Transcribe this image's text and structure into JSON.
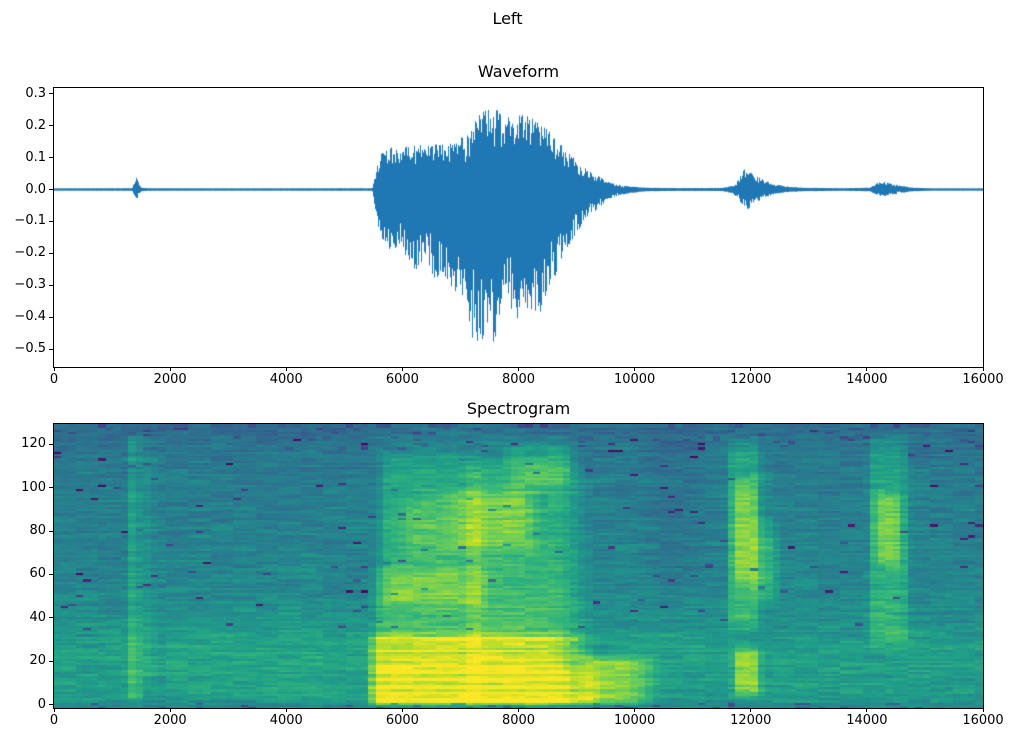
{
  "figure": {
    "suptitle": "Left",
    "background": "#ffffff",
    "text_color": "#000000"
  },
  "chart_data": [
    {
      "type": "line",
      "name": "waveform",
      "title": "Waveform",
      "line_color": "#1f77b4",
      "xlim": [
        0,
        16000
      ],
      "ylim": [
        -0.556,
        0.318
      ],
      "xticks": [
        0,
        2000,
        4000,
        6000,
        8000,
        10000,
        12000,
        14000,
        16000
      ],
      "yticks": [
        0.3,
        0.2,
        0.1,
        0.0,
        -0.1,
        -0.2,
        -0.3,
        -0.4,
        -0.5
      ],
      "grid": false,
      "envelope_note": "audio waveform; points are [sample_index, max_amplitude, min_amplitude]",
      "envelope_points": [
        [
          0,
          0.0035,
          -0.0035
        ],
        [
          1340,
          0.004,
          -0.004
        ],
        [
          1385,
          0.028,
          -0.024
        ],
        [
          1410,
          0.04,
          -0.035
        ],
        [
          1445,
          0.026,
          -0.022
        ],
        [
          1495,
          0.006,
          -0.006
        ],
        [
          1600,
          0.004,
          -0.004
        ],
        [
          3000,
          0.0035,
          -0.0035
        ],
        [
          5480,
          0.004,
          -0.004
        ],
        [
          5560,
          0.07,
          -0.1
        ],
        [
          5650,
          0.12,
          -0.16
        ],
        [
          5800,
          0.14,
          -0.2
        ],
        [
          5950,
          0.12,
          -0.17
        ],
        [
          6100,
          0.14,
          -0.23
        ],
        [
          6250,
          0.15,
          -0.26
        ],
        [
          6400,
          0.13,
          -0.22
        ],
        [
          6550,
          0.15,
          -0.29
        ],
        [
          6700,
          0.14,
          -0.26
        ],
        [
          6850,
          0.15,
          -0.31
        ],
        [
          7000,
          0.16,
          -0.34
        ],
        [
          7150,
          0.19,
          -0.45
        ],
        [
          7300,
          0.23,
          -0.52
        ],
        [
          7450,
          0.27,
          -0.51
        ],
        [
          7600,
          0.26,
          -0.47
        ],
        [
          7750,
          0.23,
          -0.4
        ],
        [
          7900,
          0.24,
          -0.38
        ],
        [
          8050,
          0.26,
          -0.43
        ],
        [
          8200,
          0.24,
          -0.37
        ],
        [
          8350,
          0.21,
          -0.42
        ],
        [
          8500,
          0.19,
          -0.33
        ],
        [
          8650,
          0.16,
          -0.27
        ],
        [
          8800,
          0.13,
          -0.21
        ],
        [
          8950,
          0.1,
          -0.15
        ],
        [
          9100,
          0.075,
          -0.11
        ],
        [
          9250,
          0.055,
          -0.08
        ],
        [
          9400,
          0.04,
          -0.055
        ],
        [
          9550,
          0.025,
          -0.032
        ],
        [
          9700,
          0.016,
          -0.02
        ],
        [
          9900,
          0.01,
          -0.012
        ],
        [
          10200,
          0.006,
          -0.006
        ],
        [
          10800,
          0.0045,
          -0.0045
        ],
        [
          11500,
          0.005,
          -0.005
        ],
        [
          11700,
          0.012,
          -0.012
        ],
        [
          11820,
          0.04,
          -0.038
        ],
        [
          11930,
          0.075,
          -0.068
        ],
        [
          12030,
          0.055,
          -0.05
        ],
        [
          12130,
          0.042,
          -0.038
        ],
        [
          12250,
          0.028,
          -0.025
        ],
        [
          12400,
          0.018,
          -0.016
        ],
        [
          12600,
          0.01,
          -0.009
        ],
        [
          12900,
          0.006,
          -0.006
        ],
        [
          13600,
          0.004,
          -0.004
        ],
        [
          14060,
          0.006,
          -0.006
        ],
        [
          14180,
          0.022,
          -0.019
        ],
        [
          14300,
          0.025,
          -0.021
        ],
        [
          14450,
          0.018,
          -0.016
        ],
        [
          14600,
          0.012,
          -0.011
        ],
        [
          14800,
          0.006,
          -0.006
        ],
        [
          15200,
          0.0035,
          -0.0035
        ],
        [
          16000,
          0.0035,
          -0.0035
        ]
      ]
    },
    {
      "type": "heatmap",
      "name": "spectrogram",
      "title": "Spectrogram",
      "colormap": "viridis",
      "colormap_stops": [
        "#440154",
        "#482878",
        "#3e4989",
        "#31688e",
        "#26828e",
        "#1f9e89",
        "#35b779",
        "#6ece58",
        "#b5de2b",
        "#fde725"
      ],
      "xlim": [
        0,
        16000
      ],
      "ylim": [
        -1.6,
        129.4
      ],
      "xticks": [
        0,
        2000,
        4000,
        6000,
        8000,
        10000,
        12000,
        14000,
        16000
      ],
      "yticks": [
        0,
        20,
        40,
        60,
        80,
        100,
        120
      ],
      "grid_cols": 124,
      "grid_rows": 129,
      "base_profile": [
        [
          0,
          0.47
        ],
        [
          3,
          0.53
        ],
        [
          8,
          0.56
        ],
        [
          13,
          0.54
        ],
        [
          19,
          0.57
        ],
        [
          29,
          0.55
        ],
        [
          38,
          0.5
        ],
        [
          50,
          0.475
        ],
        [
          62,
          0.455
        ],
        [
          75,
          0.44
        ],
        [
          90,
          0.43
        ],
        [
          103,
          0.42
        ],
        [
          112,
          0.405
        ],
        [
          119,
          0.39
        ],
        [
          125,
          0.375
        ],
        [
          129,
          0.35
        ]
      ],
      "features_note": "bright regions; x in samples, f in freq bins, boost added to colormap fraction",
      "features": [
        {
          "name": "click-band",
          "x": [
            1355,
            1470
          ],
          "f": [
            3,
            126
          ],
          "boost": 0.27,
          "sx": [
            60,
            60
          ],
          "sf": [
            3,
            3
          ]
        },
        {
          "name": "click-echo",
          "x": [
            1580,
            1720
          ],
          "f": [
            8,
            122
          ],
          "boost": 0.08,
          "sx": [
            80,
            80
          ],
          "sf": [
            5,
            5
          ]
        },
        {
          "name": "voice-harmonics-low",
          "x": [
            5480,
            9100
          ],
          "f": [
            0.5,
            17
          ],
          "boost": 0.45,
          "sx": [
            120,
            450
          ],
          "sf": [
            1.5,
            2.5
          ],
          "bands": true
        },
        {
          "name": "voice-harmonics-mid",
          "x": [
            5480,
            9000
          ],
          "f": [
            17,
            33
          ],
          "boost": 0.36,
          "sx": [
            120,
            450
          ],
          "sf": [
            2.5,
            3
          ],
          "bands": true
        },
        {
          "name": "voice-low-tail",
          "x": [
            9100,
            10200
          ],
          "f": [
            1,
            22
          ],
          "boost": 0.28,
          "sx": [
            200,
            400
          ],
          "sf": [
            2,
            3
          ]
        },
        {
          "name": "voice-mid-band",
          "x": [
            5550,
            9000
          ],
          "f": [
            33,
            64
          ],
          "boost": 0.21,
          "sx": [
            150,
            420
          ],
          "sf": [
            4,
            5
          ]
        },
        {
          "name": "voice-mid-core",
          "x": [
            5700,
            7400
          ],
          "f": [
            46,
            64
          ],
          "boost": 0.12,
          "sx": [
            200,
            200
          ],
          "sf": [
            4,
            4
          ]
        },
        {
          "name": "voice-upper",
          "x": [
            5650,
            9000
          ],
          "f": [
            64,
            113
          ],
          "boost": 0.19,
          "sx": [
            150,
            420
          ],
          "sf": [
            5,
            6
          ]
        },
        {
          "name": "voice-upper-core",
          "x": [
            6850,
            8250
          ],
          "f": [
            71,
            99
          ],
          "boost": 0.17,
          "sx": [
            250,
            250
          ],
          "sf": [
            5,
            5
          ]
        },
        {
          "name": "voice-upper-core2",
          "x": [
            6050,
            6850
          ],
          "f": [
            69,
            96
          ],
          "boost": 0.09,
          "sx": [
            200,
            200
          ],
          "sf": [
            5,
            5
          ]
        },
        {
          "name": "voice-upper-right",
          "x": [
            7800,
            8950
          ],
          "f": [
            100,
            120
          ],
          "boost": 0.12,
          "sx": [
            200,
            200
          ],
          "sf": [
            4,
            4
          ]
        },
        {
          "name": "voice-top",
          "x": [
            5600,
            8900
          ],
          "f": [
            112,
            125
          ],
          "boost": 0.06,
          "sx": [
            200,
            300
          ],
          "sf": [
            4,
            4
          ]
        },
        {
          "name": "voice-column",
          "x": [
            7130,
            7400
          ],
          "f": [
            2,
            112
          ],
          "boost": 0.07,
          "sx": [
            80,
            80
          ],
          "sf": [
            6,
            6
          ]
        },
        {
          "name": "post-dip",
          "x": [
            10250,
            11150
          ],
          "f": [
            55,
            128
          ],
          "boost": -0.04,
          "sx": [
            250,
            250
          ],
          "sf": [
            8,
            8
          ]
        },
        {
          "name": "phrase2-band",
          "x": [
            11640,
            12130
          ],
          "f": [
            36,
            121
          ],
          "boost": 0.19,
          "sx": [
            80,
            120
          ],
          "sf": [
            5,
            6
          ]
        },
        {
          "name": "phrase2-core",
          "x": [
            11710,
            12090
          ],
          "f": [
            57,
            103
          ],
          "boost": 0.19,
          "sx": [
            120,
            120
          ],
          "sf": [
            5,
            5
          ]
        },
        {
          "name": "phrase2-tip",
          "x": [
            12060,
            12440
          ],
          "f": [
            49,
            81
          ],
          "boost": 0.21,
          "sx": [
            100,
            180
          ],
          "sf": [
            6,
            7
          ]
        },
        {
          "name": "phrase2-top",
          "x": [
            12050,
            12360
          ],
          "f": [
            79,
            116
          ],
          "boost": 0.08,
          "sx": [
            100,
            150
          ],
          "sf": [
            5,
            5
          ]
        },
        {
          "name": "phrase2-low",
          "x": [
            11730,
            12160
          ],
          "f": [
            5,
            26
          ],
          "boost": 0.27,
          "sx": [
            100,
            100
          ],
          "sf": [
            3,
            4
          ]
        },
        {
          "name": "phrase3-band",
          "x": [
            14060,
            14700
          ],
          "f": [
            28,
            122
          ],
          "boost": 0.16,
          "sx": [
            100,
            140
          ],
          "sf": [
            6,
            7
          ]
        },
        {
          "name": "phrase3-core",
          "x": [
            14140,
            14590
          ],
          "f": [
            65,
            98
          ],
          "boost": 0.2,
          "sx": [
            150,
            150
          ],
          "sf": [
            5,
            5
          ]
        },
        {
          "name": "left-faint",
          "x": [
            2200,
            5200
          ],
          "f": [
            1,
            48
          ],
          "boost": 0.025,
          "sx": [
            600,
            600
          ],
          "sf": [
            6,
            6
          ]
        }
      ]
    }
  ]
}
